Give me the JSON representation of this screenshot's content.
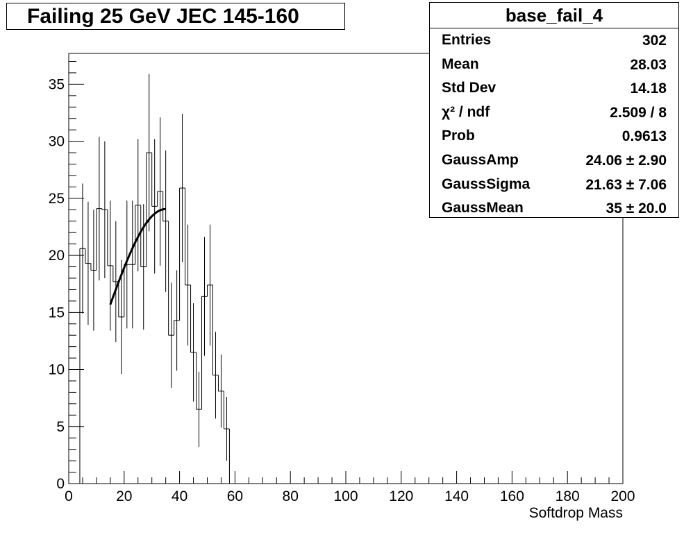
{
  "chart_data": {
    "type": "histogram",
    "title": "Failing 25 GeV JEC 145-160",
    "xlabel": "Softdrop Mass",
    "ylabel": "",
    "xlim": [
      0,
      200
    ],
    "ylim": [
      0,
      37.7
    ],
    "x_ticks": [
      "0",
      "20",
      "40",
      "60",
      "80",
      "100",
      "120",
      "140",
      "160",
      "180",
      "200"
    ],
    "y_ticks": [
      "0",
      "5",
      "10",
      "15",
      "20",
      "25",
      "30",
      "35"
    ],
    "bin_width": 2,
    "bins": [
      {
        "lo": 4,
        "value": 20.6,
        "err": 5.7
      },
      {
        "lo": 6,
        "value": 19.3,
        "err": 5.4
      },
      {
        "lo": 8,
        "value": 18.7,
        "err": 5.3
      },
      {
        "lo": 10,
        "value": 24.1,
        "err": 6.3
      },
      {
        "lo": 12,
        "value": 24.0,
        "err": 6.0
      },
      {
        "lo": 14,
        "value": 19.1,
        "err": 5.7
      },
      {
        "lo": 16,
        "value": 17.7,
        "err": 5.3
      },
      {
        "lo": 18,
        "value": 14.6,
        "err": 5.0
      },
      {
        "lo": 20,
        "value": 19.2,
        "err": 5.6
      },
      {
        "lo": 22,
        "value": 19.2,
        "err": 5.6
      },
      {
        "lo": 24,
        "value": 24.4,
        "err": 5.8
      },
      {
        "lo": 26,
        "value": 19.0,
        "err": 5.5
      },
      {
        "lo": 28,
        "value": 29.0,
        "err": 6.9
      },
      {
        "lo": 30,
        "value": 24.3,
        "err": 5.9
      },
      {
        "lo": 32,
        "value": 25.6,
        "err": 6.5
      },
      {
        "lo": 34,
        "value": 23.0,
        "err": 6.2
      },
      {
        "lo": 36,
        "value": 13.0,
        "err": 4.6
      },
      {
        "lo": 38,
        "value": 14.3,
        "err": 4.4
      },
      {
        "lo": 40,
        "value": 25.9,
        "err": 6.5
      },
      {
        "lo": 42,
        "value": 17.4,
        "err": 5.3
      },
      {
        "lo": 44,
        "value": 11.5,
        "err": 4.3
      },
      {
        "lo": 46,
        "value": 6.5,
        "err": 3.3
      },
      {
        "lo": 48,
        "value": 16.4,
        "err": 5.2
      },
      {
        "lo": 50,
        "value": 17.4,
        "err": 5.3
      },
      {
        "lo": 52,
        "value": 9.5,
        "err": 3.8
      },
      {
        "lo": 54,
        "value": 8.1,
        "err": 3.2
      },
      {
        "lo": 56,
        "value": 4.8,
        "err": 2.8
      },
      {
        "lo": 58,
        "value": 0,
        "err": 0
      }
    ],
    "fit": {
      "function": "gaussian",
      "amp": 24.06,
      "sigma": 21.63,
      "mean": 35,
      "xrange": [
        15,
        35
      ]
    }
  },
  "stats": {
    "title": "base_fail_4",
    "rows": [
      {
        "label": "Entries",
        "value": "302"
      },
      {
        "label": "Mean",
        "value": "28.03"
      },
      {
        "label": "Std Dev",
        "value": "14.18"
      },
      {
        "label": "χ² / ndf",
        "value": "2.509 / 8"
      },
      {
        "label": "Prob",
        "value": "0.9613"
      },
      {
        "label": "GaussAmp",
        "value": "24.06 ± 2.90"
      },
      {
        "label": "GaussSigma",
        "value": "21.63 ± 7.06"
      },
      {
        "label": "GaussMean",
        "value": "35 ± 20.0"
      }
    ]
  }
}
